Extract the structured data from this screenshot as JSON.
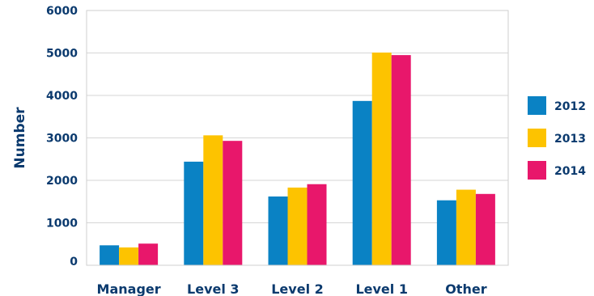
{
  "chart_data": {
    "type": "bar",
    "ylabel": "Number",
    "ylim": [
      0,
      6000
    ],
    "yticks": [
      0,
      1000,
      2000,
      3000,
      4000,
      5000,
      6000
    ],
    "grid": true,
    "legend_position": "right",
    "categories": [
      "Manager",
      "Level 3",
      "Level 2",
      "Level 1",
      "Other"
    ],
    "series": [
      {
        "name": "2012",
        "color": "#0a82c4",
        "values": [
          470,
          2440,
          1620,
          3870,
          1530
        ]
      },
      {
        "name": "2013",
        "color": "#fdc300",
        "values": [
          420,
          3060,
          1830,
          5010,
          1780
        ]
      },
      {
        "name": "2014",
        "color": "#e8176b",
        "values": [
          510,
          2930,
          1910,
          4950,
          1680
        ]
      }
    ]
  }
}
